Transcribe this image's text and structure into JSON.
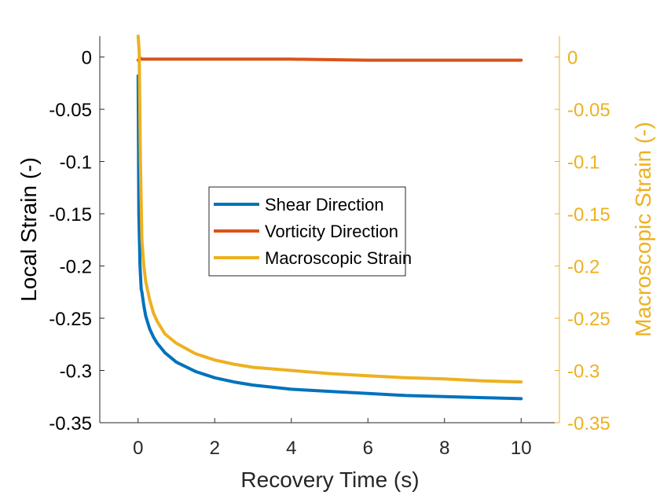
{
  "chart_data": {
    "type": "line",
    "xlabel": "Recovery Time (s)",
    "ylabel_left": "Local Strain (-)",
    "ylabel_right": "Macroscopic Strain (-)",
    "xlim": [
      -1,
      11
    ],
    "ylim_left": [
      -0.35,
      0.02
    ],
    "ylim_right": [
      -0.35,
      0.02
    ],
    "x_ticks": [
      0,
      2,
      4,
      6,
      8,
      10
    ],
    "x_tick_labels": [
      "0",
      "2",
      "4",
      "6",
      "8",
      "10"
    ],
    "y_ticks": [
      0,
      -0.05,
      -0.1,
      -0.15,
      -0.2,
      -0.25,
      -0.3,
      -0.35
    ],
    "y_tick_labels": [
      "0",
      "-0.05",
      "-0.1",
      "-0.15",
      "-0.2",
      "-0.25",
      "-0.3",
      "-0.35"
    ],
    "grid": false,
    "legend_position": "center",
    "colors": {
      "axis": "#262626",
      "right_axis": "#EDB120"
    },
    "series": [
      {
        "name": "Shear Direction",
        "color": "#0072BD",
        "axis": "left",
        "x": [
          0.0,
          0.02,
          0.05,
          0.08,
          0.1,
          0.15,
          0.2,
          0.3,
          0.4,
          0.5,
          0.7,
          1.0,
          1.5,
          2.0,
          2.5,
          3.0,
          4.0,
          5.0,
          6.0,
          7.0,
          8.0,
          9.0,
          10.0
        ],
        "y": [
          -0.018,
          -0.15,
          -0.2,
          -0.222,
          -0.225,
          -0.238,
          -0.248,
          -0.26,
          -0.268,
          -0.274,
          -0.283,
          -0.292,
          -0.301,
          -0.307,
          -0.311,
          -0.314,
          -0.318,
          -0.32,
          -0.322,
          -0.324,
          -0.325,
          -0.326,
          -0.327
        ]
      },
      {
        "name": "Vorticity Direction",
        "color": "#D95319",
        "axis": "left",
        "x": [
          0.0,
          0.05,
          0.1,
          0.2,
          0.5,
          1.0,
          2.0,
          4.0,
          6.0,
          8.0,
          10.0
        ],
        "y": [
          -0.003,
          -0.001,
          -0.002,
          -0.002,
          -0.002,
          -0.002,
          -0.002,
          -0.002,
          -0.003,
          -0.003,
          -0.003
        ]
      },
      {
        "name": "Macroscopic Strain",
        "color": "#EDB120",
        "axis": "right",
        "x": [
          0.0,
          0.03,
          0.06,
          0.1,
          0.15,
          0.2,
          0.3,
          0.4,
          0.5,
          0.7,
          1.0,
          1.5,
          2.0,
          2.5,
          3.0,
          4.0,
          5.0,
          6.0,
          7.0,
          8.0,
          9.0,
          10.0
        ],
        "y": [
          0.02,
          0.005,
          -0.1,
          -0.175,
          -0.2,
          -0.215,
          -0.232,
          -0.245,
          -0.253,
          -0.265,
          -0.274,
          -0.284,
          -0.29,
          -0.294,
          -0.297,
          -0.3,
          -0.303,
          -0.305,
          -0.307,
          -0.308,
          -0.31,
          -0.311
        ]
      }
    ]
  }
}
